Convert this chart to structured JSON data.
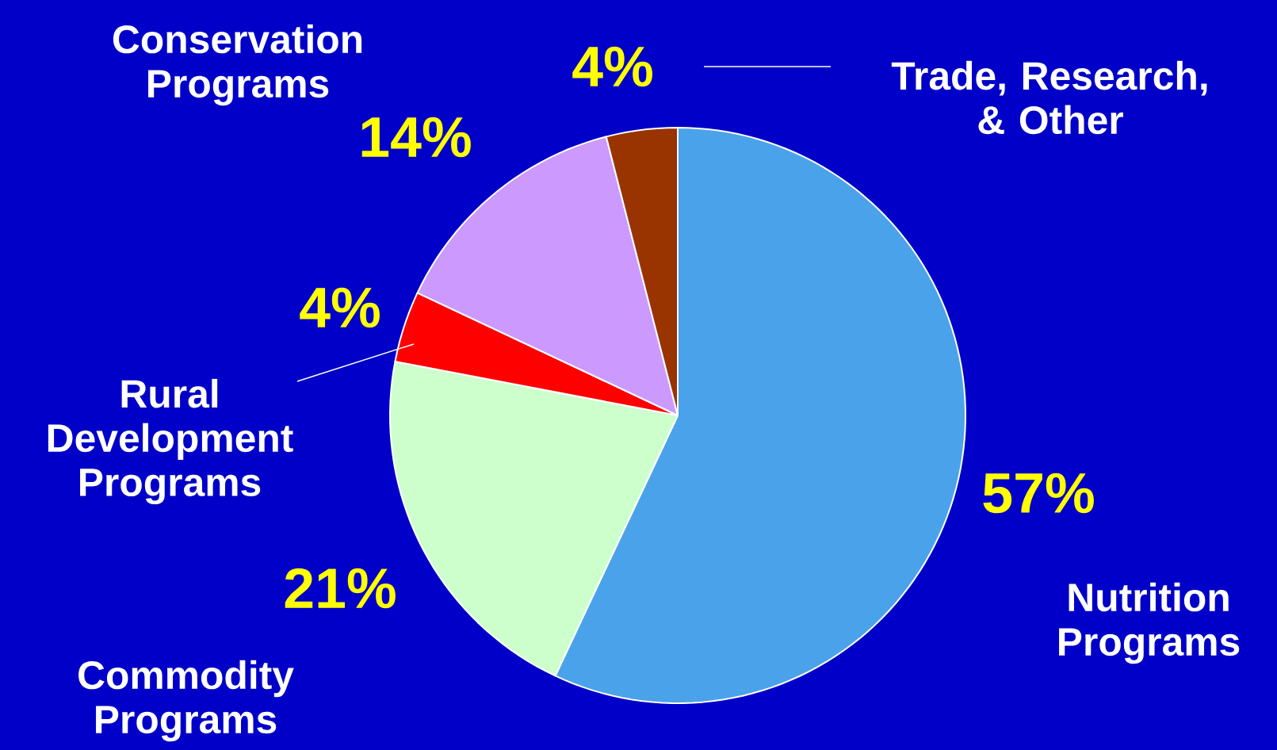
{
  "chart_data": {
    "type": "pie",
    "categories": [
      "Nutrition Programs",
      "Commodity Programs",
      "Rural Development Programs",
      "Conservation Programs",
      "Trade, Research, & Other"
    ],
    "values": [
      57,
      21,
      4,
      14,
      4
    ],
    "colors": [
      "#4aa3ea",
      "#ccffcc",
      "#ff0000",
      "#cc99ff",
      "#993300"
    ],
    "value_labels": [
      "57%",
      "21%",
      "4%",
      "14%",
      "4%"
    ]
  }
}
